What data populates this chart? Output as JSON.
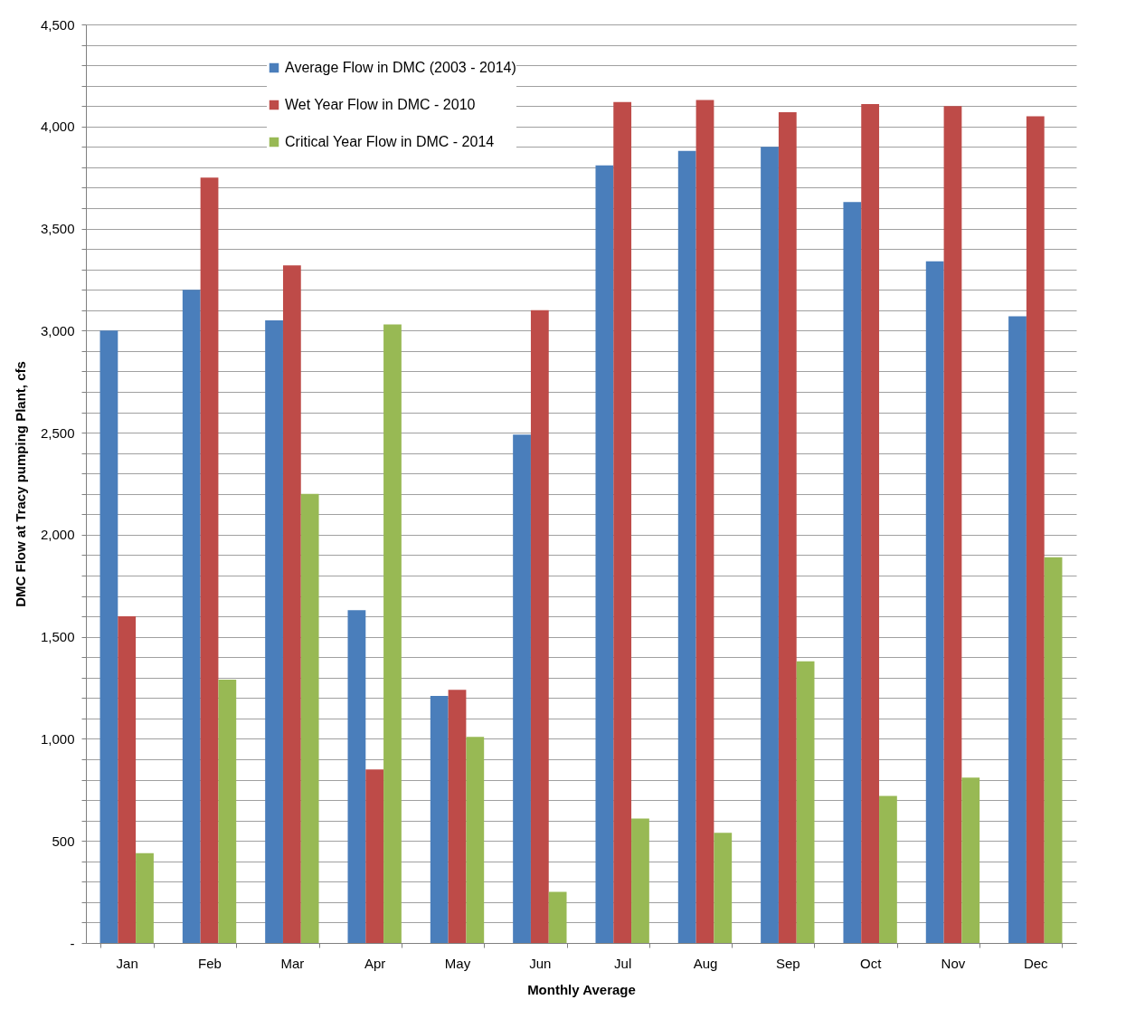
{
  "chart_data": {
    "type": "bar",
    "xlabel": "Monthly Average",
    "ylabel": "DMC Flow at Tracy pumping Plant, cfs",
    "categories": [
      "Jan",
      "Feb",
      "Mar",
      "Apr",
      "May",
      "Jun",
      "Jul",
      "Aug",
      "Sep",
      "Oct",
      "Nov",
      "Dec"
    ],
    "series": [
      {
        "name": "Average Flow in DMC (2003 - 2014)",
        "color": "#4a7ebb",
        "values": [
          3000,
          3200,
          3050,
          1630,
          1210,
          2490,
          3810,
          3880,
          3900,
          3630,
          3340,
          3070
        ]
      },
      {
        "name": "Wet Year Flow in DMC - 2010",
        "color": "#be4b48",
        "values": [
          1600,
          3750,
          3320,
          850,
          1240,
          3100,
          4120,
          4130,
          4070,
          4110,
          4100,
          4050
        ]
      },
      {
        "name": "Critical Year Flow in DMC - 2014",
        "color": "#98b954",
        "values": [
          440,
          1290,
          2200,
          3030,
          1010,
          250,
          610,
          540,
          1380,
          720,
          810,
          1890
        ]
      }
    ],
    "ylim": [
      0,
      4500
    ],
    "yticks": [
      {
        "value": 0,
        "label": "-"
      },
      {
        "value": 100,
        "label": null
      },
      {
        "value": 200,
        "label": null
      },
      {
        "value": 300,
        "label": null
      },
      {
        "value": 400,
        "label": null
      },
      {
        "value": 500,
        "label": "500"
      },
      {
        "value": 600,
        "label": null
      },
      {
        "value": 700,
        "label": null
      },
      {
        "value": 800,
        "label": null
      },
      {
        "value": 900,
        "label": null
      },
      {
        "value": 1000,
        "label": "1,000"
      },
      {
        "value": 1100,
        "label": null
      },
      {
        "value": 1200,
        "label": null
      },
      {
        "value": 1300,
        "label": null
      },
      {
        "value": 1400,
        "label": null
      },
      {
        "value": 1500,
        "label": "1,500"
      },
      {
        "value": 1600,
        "label": null
      },
      {
        "value": 1700,
        "label": null
      },
      {
        "value": 1800,
        "label": null
      },
      {
        "value": 1900,
        "label": null
      },
      {
        "value": 2000,
        "label": "2,000"
      },
      {
        "value": 2100,
        "label": null
      },
      {
        "value": 2200,
        "label": null
      },
      {
        "value": 2300,
        "label": null
      },
      {
        "value": 2400,
        "label": null
      },
      {
        "value": 2500,
        "label": "2,500"
      },
      {
        "value": 2600,
        "label": null
      },
      {
        "value": 2700,
        "label": null
      },
      {
        "value": 2800,
        "label": null
      },
      {
        "value": 2900,
        "label": null
      },
      {
        "value": 3000,
        "label": "3,000"
      },
      {
        "value": 3100,
        "label": null
      },
      {
        "value": 3200,
        "label": null
      },
      {
        "value": 3300,
        "label": null
      },
      {
        "value": 3400,
        "label": null
      },
      {
        "value": 3500,
        "label": "3,500"
      },
      {
        "value": 3600,
        "label": null
      },
      {
        "value": 3700,
        "label": null
      },
      {
        "value": 3800,
        "label": null
      },
      {
        "value": 3900,
        "label": null
      },
      {
        "value": 4000,
        "label": "4,000"
      },
      {
        "value": 4100,
        "label": null
      },
      {
        "value": 4200,
        "label": null
      },
      {
        "value": 4300,
        "label": null
      },
      {
        "value": 4400,
        "label": null
      },
      {
        "value": 4500,
        "label": "4,500"
      }
    ],
    "grid": "y",
    "legend": "top left"
  }
}
